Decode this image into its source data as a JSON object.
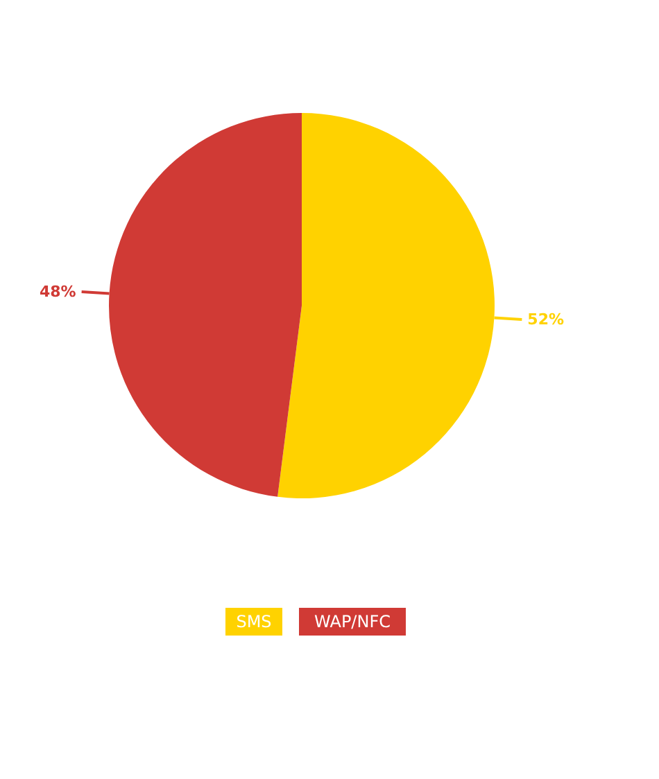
{
  "chart_data": {
    "type": "pie",
    "categories": [
      "SMS",
      "WAP/NFC"
    ],
    "values": [
      52,
      48
    ],
    "colors": [
      "#ffd200",
      "#d03a35"
    ],
    "value_labels": [
      "52%",
      "48%"
    ],
    "legend": "bottom"
  }
}
